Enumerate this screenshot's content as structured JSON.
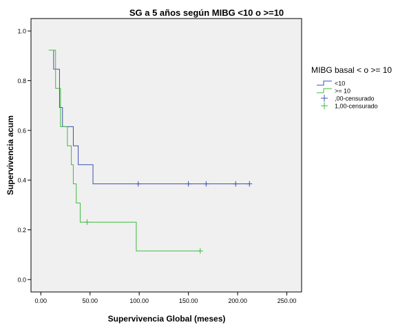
{
  "chart_data": {
    "type": "line",
    "title": "SG a 5 años según MIBG <10 o >=10",
    "xlabel": "Supervivencia Global (meses)",
    "ylabel": "Supervivencia acum",
    "xlim": [
      -10,
      265
    ],
    "ylim": [
      -0.05,
      1.05
    ],
    "xticks": [
      0,
      50,
      100,
      150,
      200,
      250
    ],
    "xtick_labels": [
      "0.00",
      "50.00",
      "100.00",
      "150.00",
      "200.00",
      "250.00"
    ],
    "yticks": [
      0.0,
      0.2,
      0.4,
      0.6,
      0.8,
      1.0
    ],
    "ytick_labels": [
      "0.0",
      "0.2",
      "0.4",
      "0.6",
      "0.8",
      "1.0"
    ],
    "plot_background": "#f0f0f0",
    "grid": false,
    "legend_position": "right",
    "legend_title": "MIBG basal < o >= 10",
    "series": [
      {
        "name": "<10",
        "color": "#3b4fb0",
        "step_x": [
          9,
          13,
          19,
          22,
          33,
          38,
          53,
          212
        ],
        "step_y": [
          0.923,
          0.846,
          0.692,
          0.615,
          0.538,
          0.462,
          0.385,
          0.385
        ],
        "censored_x": [
          99,
          150,
          168,
          198,
          212
        ],
        "censored_y": [
          0.385,
          0.385,
          0.385,
          0.385,
          0.385
        ]
      },
      {
        "name": ">= 10",
        "color": "#3dbb3d",
        "step_x": [
          8,
          15,
          20,
          27,
          31,
          33,
          36,
          40,
          97,
          162
        ],
        "step_y": [
          0.923,
          0.769,
          0.615,
          0.538,
          0.462,
          0.385,
          0.308,
          0.231,
          0.115,
          0.115
        ],
        "censored_x": [
          47,
          162
        ],
        "censored_y": [
          0.231,
          0.115
        ]
      }
    ],
    "legend_entries": [
      {
        "label": "<10",
        "kind": "line",
        "color": "#3b4fb0"
      },
      {
        "label": ">= 10",
        "kind": "line",
        "color": "#3dbb3d"
      },
      {
        "label": ",00-censurado",
        "kind": "plus",
        "color": "#3b4fb0"
      },
      {
        "label": "1,00-censurado",
        "kind": "plus",
        "color": "#3dbb3d"
      }
    ]
  }
}
